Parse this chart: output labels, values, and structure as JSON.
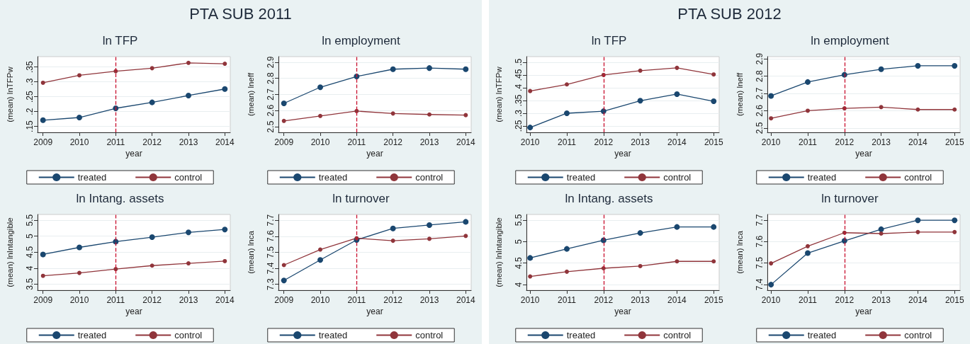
{
  "chart_data": [
    {
      "type": "other",
      "title": "PTA SUB 2011"
    },
    {
      "type": "line",
      "title": "ln TFP",
      "xlabel": "year",
      "ylabel": "(mean) lnTFPw",
      "x": [
        2009,
        2010,
        2011,
        2012,
        2013,
        2014
      ],
      "xlim": [
        2008.85,
        2014.15
      ],
      "xticks": [
        2009,
        2010,
        2011,
        2012,
        2013,
        2014
      ],
      "ylim": [
        0.13,
        0.385
      ],
      "yticks": [
        {
          "value": 0.15,
          "label": ".15"
        },
        {
          "value": 0.2,
          "label": ".2"
        },
        {
          "value": 0.25,
          "label": ".25"
        },
        {
          "value": 0.3,
          "label": ".3"
        },
        {
          "value": 0.35,
          "label": ".35"
        }
      ],
      "grid": "y",
      "legend": "bottom",
      "marker": "circle",
      "ref_lines": [
        {
          "axis": "x",
          "value": 2011,
          "color": "#c8102e",
          "line_style": "dashed"
        }
      ],
      "series": [
        {
          "name": "treated",
          "color": "#1a476f",
          "values": [
            0.171,
            0.18,
            0.211,
            0.231,
            0.254,
            0.276
          ]
        },
        {
          "name": "control",
          "color": "#90353b",
          "values": [
            0.297,
            0.322,
            0.336,
            0.346,
            0.364,
            0.361
          ]
        }
      ]
    },
    {
      "type": "line",
      "title": "ln employment",
      "xlabel": "year",
      "ylabel": "(mean) lneff",
      "x": [
        2009,
        2010,
        2011,
        2012,
        2013,
        2014
      ],
      "xlim": [
        2008.85,
        2014.15
      ],
      "xticks": [
        2009,
        2010,
        2011,
        2012,
        2013,
        2014
      ],
      "ylim": [
        2.465,
        2.935
      ],
      "yticks": [
        2.5,
        2.6,
        2.7,
        2.8,
        2.9
      ],
      "grid": "y",
      "legend": "bottom",
      "marker": "circle",
      "ref_lines": [
        {
          "axis": "x",
          "value": 2011,
          "color": "#c8102e",
          "line_style": "dashed"
        }
      ],
      "series": [
        {
          "name": "treated",
          "color": "#1a476f",
          "values": [
            2.645,
            2.745,
            2.812,
            2.857,
            2.864,
            2.857
          ]
        },
        {
          "name": "control",
          "color": "#90353b",
          "values": [
            2.536,
            2.567,
            2.597,
            2.582,
            2.576,
            2.572
          ]
        }
      ]
    },
    {
      "type": "line",
      "title": "ln Intang. assets",
      "xlabel": "year",
      "ylabel": "(mean) lnIntangible",
      "x": [
        2009,
        2010,
        2011,
        2012,
        2013,
        2014
      ],
      "xlim": [
        2008.85,
        2014.15
      ],
      "xticks": [
        2009,
        2010,
        2011,
        2012,
        2013,
        2014
      ],
      "ylim": [
        3.31,
        5.68
      ],
      "yticks": [
        3.5,
        4,
        4.5,
        5,
        5.5
      ],
      "grid": "y",
      "legend": "bottom",
      "marker": "circle",
      "ref_lines": [
        {
          "axis": "x",
          "value": 2011,
          "color": "#c8102e",
          "line_style": "dashed"
        }
      ],
      "series": [
        {
          "name": "treated",
          "color": "#1a476f",
          "values": [
            4.43,
            4.65,
            4.83,
            4.97,
            5.12,
            5.21
          ]
        },
        {
          "name": "control",
          "color": "#90353b",
          "values": [
            3.76,
            3.85,
            3.97,
            4.08,
            4.15,
            4.22
          ]
        }
      ]
    },
    {
      "type": "line",
      "title": "ln turnover",
      "xlabel": "year",
      "ylabel": "(mean) lnca",
      "x": [
        2009,
        2010,
        2011,
        2012,
        2013,
        2014
      ],
      "xlim": [
        2008.85,
        2014.15
      ],
      "xticks": [
        2009,
        2010,
        2011,
        2012,
        2013,
        2014
      ],
      "ylim": [
        7.263,
        7.736
      ],
      "yticks": [
        7.3,
        7.4,
        7.5,
        7.6,
        7.7
      ],
      "grid": "y",
      "legend": "bottom",
      "marker": "circle",
      "ref_lines": [
        {
          "axis": "x",
          "value": 2011,
          "color": "#c8102e",
          "line_style": "dashed"
        }
      ],
      "series": [
        {
          "name": "treated",
          "color": "#1a476f",
          "values": [
            7.324,
            7.452,
            7.577,
            7.649,
            7.67,
            7.69
          ]
        },
        {
          "name": "control",
          "color": "#90353b",
          "values": [
            7.42,
            7.517,
            7.588,
            7.572,
            7.584,
            7.602
          ]
        }
      ]
    },
    {
      "type": "other",
      "title": "PTA SUB 2012"
    },
    {
      "type": "line",
      "title": "ln TFP",
      "xlabel": "year",
      "ylabel": "(mean) lnTFPw",
      "x": [
        2010,
        2011,
        2012,
        2013,
        2014,
        2015
      ],
      "xlim": [
        2009.9,
        2015.15
      ],
      "xticks": [
        2010,
        2011,
        2012,
        2013,
        2014,
        2015
      ],
      "ylim": [
        0.225,
        0.522
      ],
      "yticks": [
        {
          "value": 0.25,
          "label": ".25"
        },
        {
          "value": 0.3,
          "label": ".3"
        },
        {
          "value": 0.35,
          "label": ".35"
        },
        {
          "value": 0.4,
          "label": ".4"
        },
        {
          "value": 0.45,
          "label": ".45"
        },
        {
          "value": 0.5,
          "label": ".5"
        }
      ],
      "grid": "y",
      "legend": "bottom",
      "marker": "circle",
      "ref_lines": [
        {
          "axis": "x",
          "value": 2012,
          "color": "#c8102e",
          "line_style": "dashed"
        }
      ],
      "series": [
        {
          "name": "treated",
          "color": "#1a476f",
          "values": [
            0.244,
            0.3,
            0.308,
            0.349,
            0.375,
            0.347
          ]
        },
        {
          "name": "control",
          "color": "#90353b",
          "values": [
            0.387,
            0.413,
            0.45,
            0.467,
            0.478,
            0.452
          ]
        }
      ]
    },
    {
      "type": "line",
      "title": "ln employment",
      "xlabel": "year",
      "ylabel": "(mean) lneff",
      "x": [
        2010,
        2011,
        2012,
        2013,
        2014,
        2015
      ],
      "xlim": [
        2009.9,
        2015.15
      ],
      "xticks": [
        2010,
        2011,
        2012,
        2013,
        2014,
        2015
      ],
      "ylim": [
        2.475,
        2.913
      ],
      "yticks": [
        2.5,
        2.6,
        2.7,
        2.8,
        2.9
      ],
      "grid": "y",
      "legend": "bottom",
      "marker": "circle",
      "ref_lines": [
        {
          "axis": "x",
          "value": 2012,
          "color": "#c8102e",
          "line_style": "dashed"
        }
      ],
      "series": [
        {
          "name": "treated",
          "color": "#1a476f",
          "values": [
            2.686,
            2.766,
            2.808,
            2.84,
            2.86,
            2.86
          ]
        },
        {
          "name": "control",
          "color": "#90353b",
          "values": [
            2.556,
            2.6,
            2.614,
            2.621,
            2.607,
            2.607
          ]
        }
      ]
    },
    {
      "type": "line",
      "title": "ln Intang. assets",
      "xlabel": "year",
      "ylabel": "(mean) lnIntangible",
      "x": [
        2010,
        2011,
        2012,
        2013,
        2014,
        2015
      ],
      "xlim": [
        2009.9,
        2015.15
      ],
      "xticks": [
        2010,
        2011,
        2012,
        2013,
        2014,
        2015
      ],
      "ylim": [
        3.87,
        5.63
      ],
      "yticks": [
        4,
        4.5,
        5,
        5.5
      ],
      "grid": "y",
      "legend": "bottom",
      "marker": "circle",
      "ref_lines": [
        {
          "axis": "x",
          "value": 2012,
          "color": "#c8102e",
          "line_style": "dashed"
        }
      ],
      "series": [
        {
          "name": "treated",
          "color": "#1a476f",
          "values": [
            4.62,
            4.83,
            5.03,
            5.2,
            5.34,
            5.34
          ]
        },
        {
          "name": "control",
          "color": "#90353b",
          "values": [
            4.19,
            4.3,
            4.38,
            4.43,
            4.54,
            4.54
          ]
        }
      ]
    },
    {
      "type": "line",
      "title": "ln turnover",
      "xlabel": "year",
      "ylabel": "(mean) lnca",
      "x": [
        2010,
        2011,
        2012,
        2013,
        2014,
        2015
      ],
      "xlim": [
        2009.9,
        2015.15
      ],
      "xticks": [
        2010,
        2011,
        2012,
        2013,
        2014,
        2015
      ],
      "ylim": [
        7.373,
        7.726
      ],
      "yticks": [
        7.4,
        7.5,
        7.6,
        7.7
      ],
      "grid": "y",
      "legend": "bottom",
      "marker": "circle",
      "ref_lines": [
        {
          "axis": "x",
          "value": 2012,
          "color": "#c8102e",
          "line_style": "dashed"
        }
      ],
      "series": [
        {
          "name": "treated",
          "color": "#1a476f",
          "values": [
            7.399,
            7.546,
            7.603,
            7.657,
            7.699,
            7.699
          ]
        },
        {
          "name": "control",
          "color": "#90353b",
          "values": [
            7.498,
            7.578,
            7.641,
            7.637,
            7.644,
            7.644
          ]
        }
      ]
    }
  ]
}
